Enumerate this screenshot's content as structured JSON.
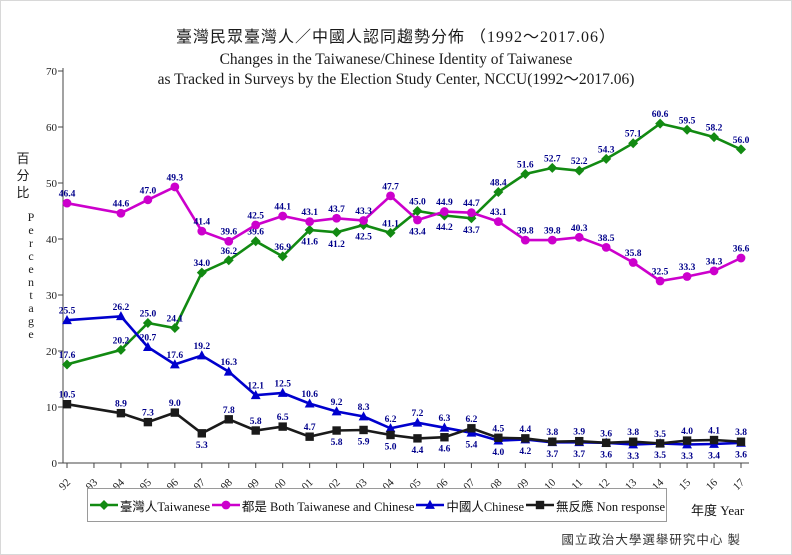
{
  "title": {
    "line1_zh": "臺灣民眾臺灣人／中國人認同趨勢分佈 （1992～2017.06）",
    "line2_en": "Changes in the Taiwanese/Chinese Identity of Taiwanese",
    "line3_en": "as Tracked in Surveys by the Election Study Center, NCCU(1992～2017.06)"
  },
  "footer": {
    "attribution": "國立政治大學選舉研究中心 製"
  },
  "chart_data": {
    "type": "line",
    "title": "臺灣民眾臺灣人／中國人認同趨勢分佈 （1992～2017.06） / Changes in the Taiwanese/Chinese Identity of Taiwanese as Tracked in Surveys by the Election Study Center, NCCU(1992～2017.06)",
    "xlabel": "年度 Year",
    "ylabel_zh": "百分比",
    "ylabel_en": "Percentage",
    "ylim": [
      0,
      70
    ],
    "yticks": [
      0,
      10,
      20,
      30,
      40,
      50,
      60,
      70
    ],
    "grid": false,
    "legend_position": "bottom",
    "x_categories": [
      "92",
      "93",
      "94",
      "95",
      "96",
      "97",
      "98",
      "99",
      "00",
      "01",
      "02",
      "03",
      "04",
      "05",
      "06",
      "07",
      "08",
      "09",
      "10",
      "11",
      "12",
      "13",
      "14",
      "15",
      "16",
      "17"
    ],
    "note": "No survey data point at year 93; line interpolates 92 to 94.",
    "label_color": "#00008b",
    "series": [
      {
        "name": "taiwanese",
        "label": "臺灣人Taiwanese",
        "color": "#128a12",
        "marker": "diamond",
        "values": [
          17.6,
          null,
          20.2,
          25.0,
          24.1,
          34.0,
          36.2,
          39.6,
          36.9,
          41.6,
          41.2,
          42.5,
          41.1,
          45.0,
          44.2,
          43.7,
          48.4,
          51.6,
          52.7,
          52.2,
          54.3,
          57.1,
          60.6,
          59.5,
          58.2,
          56.0
        ],
        "label_pos": [
          "a",
          null,
          "a",
          "a",
          "a",
          "a",
          "a",
          "a",
          "a",
          "b",
          "b",
          "b",
          "a",
          "a",
          "b",
          "b",
          "a",
          "a",
          "a",
          "a",
          "a",
          "a",
          "a",
          "a",
          "a",
          "a"
        ]
      },
      {
        "name": "both",
        "label": "都是 Both Taiwanese and Chinese",
        "color": "#cc00cc",
        "marker": "circle",
        "values": [
          46.4,
          null,
          44.6,
          47.0,
          49.3,
          41.4,
          39.6,
          42.5,
          44.1,
          43.1,
          43.7,
          43.3,
          47.7,
          43.4,
          44.9,
          44.7,
          43.1,
          39.8,
          39.8,
          40.3,
          38.5,
          35.8,
          32.5,
          33.3,
          34.3,
          36.6
        ],
        "label_pos": [
          "a",
          null,
          "a",
          "a",
          "a",
          "a",
          "a",
          "a",
          "a",
          "a",
          "a",
          "a",
          "a",
          "b",
          "a",
          "a",
          "a",
          "a",
          "a",
          "a",
          "a",
          "a",
          "a",
          "a",
          "a",
          "a"
        ]
      },
      {
        "name": "chinese",
        "label": "中國人Chinese",
        "color": "#0000cd",
        "marker": "triangle",
        "values": [
          25.5,
          null,
          26.2,
          20.7,
          17.6,
          19.2,
          16.3,
          12.1,
          12.5,
          10.6,
          9.2,
          8.3,
          6.2,
          7.2,
          6.3,
          5.4,
          4.0,
          4.2,
          3.7,
          3.7,
          3.6,
          3.3,
          3.5,
          3.3,
          3.4,
          3.6
        ],
        "label_pos": [
          "a",
          null,
          "a",
          "a",
          "a",
          "a",
          "a",
          "a",
          "a",
          "a",
          "a",
          "a",
          "a",
          "a",
          "a",
          "b",
          "b",
          "b",
          "b",
          "b",
          "b",
          "b",
          "b",
          "b",
          "b",
          "b"
        ]
      },
      {
        "name": "non_response",
        "label": "無反應 Non response",
        "color": "#1a1a1a",
        "marker": "square",
        "values": [
          10.5,
          null,
          8.9,
          7.3,
          9.0,
          5.3,
          7.8,
          5.8,
          6.5,
          4.7,
          5.8,
          5.9,
          5.0,
          4.4,
          4.6,
          6.2,
          4.5,
          4.4,
          3.8,
          3.9,
          3.6,
          3.8,
          3.5,
          4.0,
          4.1,
          3.8
        ],
        "label_pos": [
          "a",
          null,
          "a",
          "a",
          "a",
          "b",
          "a",
          "a",
          "a",
          "a",
          "b",
          "b",
          "b",
          "b",
          "b",
          "a",
          "a",
          "a",
          "a",
          "a",
          "a",
          "a",
          "a",
          "a",
          "a",
          "a"
        ]
      }
    ]
  }
}
